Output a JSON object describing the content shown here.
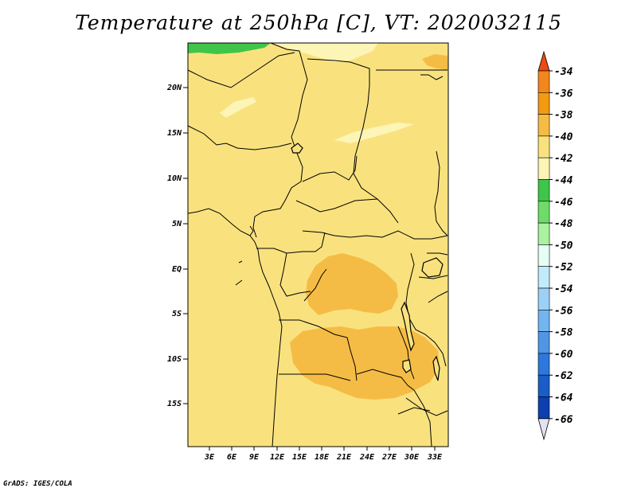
{
  "title": "Temperature at 250hPa [C], VT: 2020032115",
  "credit": "GrADS: IGES/COLA",
  "map": {
    "lat_labels": [
      "20N",
      "15N",
      "10N",
      "5N",
      "EQ",
      "5S",
      "10S",
      "15S"
    ],
    "lon_labels": [
      "3E",
      "6E",
      "9E",
      "12E",
      "15E",
      "18E",
      "21E",
      "24E",
      "27E",
      "30E",
      "33E"
    ],
    "field_colors": {
      "base": "#f9e27e",
      "warm": "#f5bc45",
      "cool": "#fdf5b6",
      "green": "#3fc54a",
      "orange": "#f4861e",
      "border": "#000000"
    }
  },
  "colorbar": {
    "labels": [
      "-34",
      "-36",
      "-38",
      "-40",
      "-42",
      "-44",
      "-46",
      "-48",
      "-50",
      "-52",
      "-54",
      "-56",
      "-58",
      "-60",
      "-62",
      "-64",
      "-66"
    ],
    "colors": [
      "#f4861e",
      "#f49a10",
      "#f5bc45",
      "#f9e27e",
      "#fdf5b6",
      "#3fc54a",
      "#6fdc6a",
      "#a8f2a0",
      "#e6fff4",
      "#c3eafb",
      "#9cd1f5",
      "#73b5ef",
      "#4f97e6",
      "#2d78dc",
      "#1a5dc8",
      "#0c40b0",
      "#081470"
    ],
    "top_color": "#ec4a12",
    "bottom_color": "#e2e2f5"
  }
}
